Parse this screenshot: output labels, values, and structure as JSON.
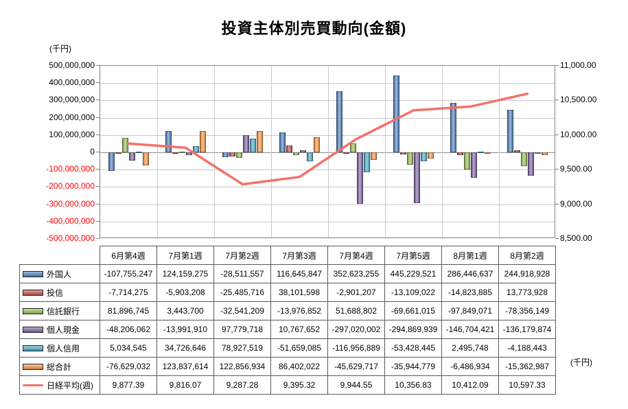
{
  "title": "投資主体別売買動向(金額)",
  "left_axis_unit": "(千円)",
  "right_axis_unit": "(千円)",
  "chart_data": {
    "type": "bar",
    "title": "投資主体別売買動向(金額)",
    "categories": [
      "6月第4週",
      "7月第1週",
      "7月第2週",
      "7月第3週",
      "7月第4週",
      "7月第5週",
      "8月第1週",
      "8月第2週"
    ],
    "series": [
      {
        "name": "外国人",
        "color": "#4F81BD",
        "values": [
          -107755247,
          124159275,
          -28511557,
          116645847,
          352623255,
          445229521,
          286446637,
          244918928
        ]
      },
      {
        "name": "投信",
        "color": "#C0504D",
        "values": [
          -7714275,
          -5903208,
          -25485716,
          38101598,
          -2901207,
          -13109022,
          -14823885,
          13773928
        ]
      },
      {
        "name": "信託銀行",
        "color": "#9BBB59",
        "values": [
          81896745,
          3443700,
          -32541209,
          -13976852,
          51688802,
          -69661015,
          -97849071,
          -78356149
        ]
      },
      {
        "name": "個人現金",
        "color": "#8064A2",
        "values": [
          -48206062,
          -13991910,
          97779718,
          10767652,
          -297020002,
          -294869939,
          -146704421,
          -136179874
        ]
      },
      {
        "name": "個人信用",
        "color": "#4BACC6",
        "values": [
          5034545,
          34726646,
          78927519,
          -51659085,
          -116956889,
          -53428445,
          2495748,
          -4188443
        ]
      },
      {
        "name": "総合計",
        "color": "#F79646",
        "values": [
          -76629032,
          123837614,
          122856934,
          86402022,
          -45629717,
          -35944779,
          -6486934,
          -15362987
        ]
      }
    ],
    "line_series": {
      "name": "日経平均(週)",
      "color": "#F4716A",
      "values": [
        9877.39,
        9816.07,
        9287.28,
        9395.32,
        9944.55,
        10356.83,
        10412.09,
        10597.33
      ]
    },
    "left_axis": {
      "min": -500000000,
      "max": 500000000,
      "step": 100000000,
      "labels": [
        "500,000,000",
        "400,000,000",
        "300,000,000",
        "200,000,000",
        "100,000,000",
        "0",
        "-100,000,000",
        "-200,000,000",
        "-300,000,000",
        "-400,000,000",
        "-500,000,000"
      ]
    },
    "right_axis": {
      "min": 8500,
      "max": 11000,
      "step": 500,
      "labels": [
        "11,000.00",
        "10,500.00",
        "10,000.00",
        "9,500.00",
        "9,000.00",
        "8,500.00"
      ]
    },
    "grid": true,
    "legend_position": "table-left"
  },
  "table": {
    "rows": [
      {
        "name": "外国人",
        "type": "bar",
        "color": "#4F81BD",
        "values": [
          "-107,755,247",
          "124,159,275",
          "-28,511,557",
          "116,645,847",
          "352,623,255",
          "445,229,521",
          "286,446,637",
          "244,918,928"
        ]
      },
      {
        "name": "投信",
        "type": "bar",
        "color": "#C0504D",
        "values": [
          "-7,714,275",
          "-5,903,208",
          "-25,485,716",
          "38,101,598",
          "-2,901,207",
          "-13,109,022",
          "-14,823,885",
          "13,773,928"
        ]
      },
      {
        "name": "信託銀行",
        "type": "bar",
        "color": "#9BBB59",
        "values": [
          "81,896,745",
          "3,443,700",
          "-32,541,209",
          "-13,976,852",
          "51,688,802",
          "-69,661,015",
          "-97,849,071",
          "-78,356,149"
        ]
      },
      {
        "name": "個人現金",
        "type": "bar",
        "color": "#8064A2",
        "values": [
          "-48,206,062",
          "-13,991,910",
          "97,779,718",
          "10,767,652",
          "-297,020,002",
          "-294,869,939",
          "-146,704,421",
          "-136,179,874"
        ]
      },
      {
        "name": "個人信用",
        "type": "bar",
        "color": "#4BACC6",
        "values": [
          "5,034,545",
          "34,726,646",
          "78,927,519",
          "-51,659,085",
          "-116,956,889",
          "-53,428,445",
          "2,495,748",
          "-4,188,443"
        ]
      },
      {
        "name": "総合計",
        "type": "bar",
        "color": "#F79646",
        "values": [
          "-76,629,032",
          "123,837,614",
          "122,856,934",
          "86,402,022",
          "-45,629,717",
          "-35,944,779",
          "-6,486,934",
          "-15,362,987"
        ]
      },
      {
        "name": "日経平均(週)",
        "type": "line",
        "color": "#F4716A",
        "values": [
          "9,877.39",
          "9,816.07",
          "9,287.28",
          "9,395.32",
          "9,944.55",
          "10,356.83",
          "10,412.09",
          "10,597.33"
        ]
      }
    ]
  }
}
